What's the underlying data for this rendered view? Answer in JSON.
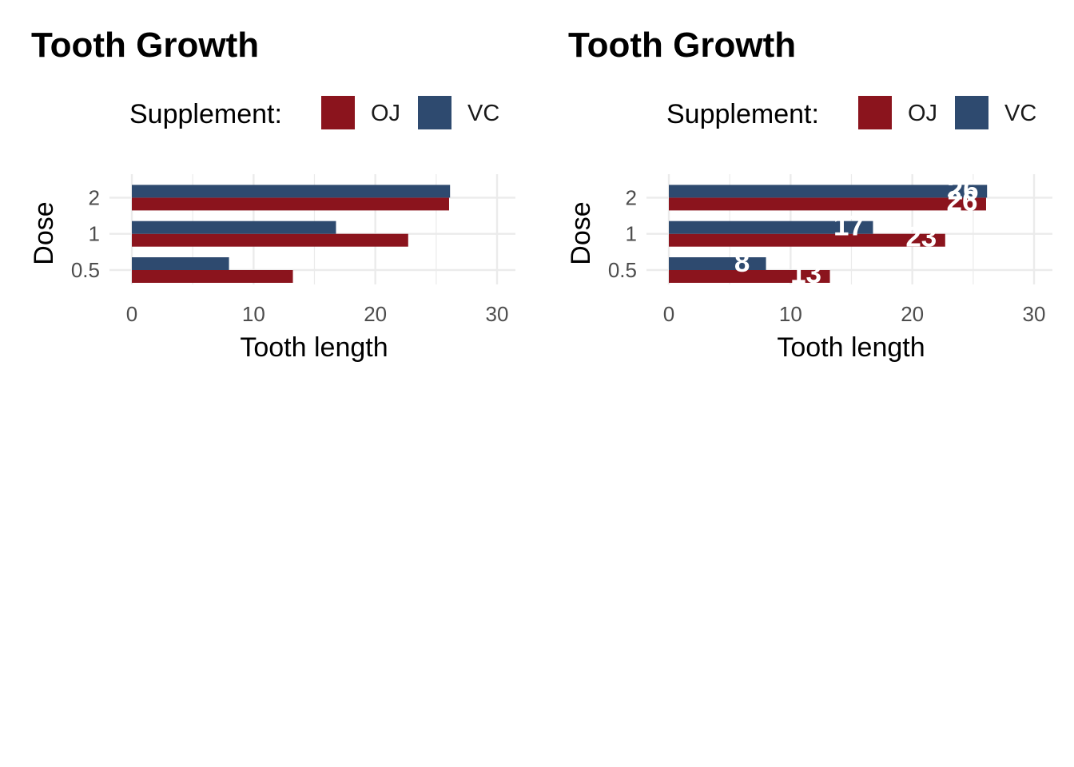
{
  "colors": {
    "OJ": "#8B141D",
    "VC": "#2E4A6F",
    "grid": "#EBEBEB"
  },
  "panels": [
    {
      "title": "Tooth Growth",
      "legend": {
        "title": "Supplement:",
        "items": [
          "OJ",
          "VC"
        ]
      },
      "show_value_labels": false
    },
    {
      "title": "Tooth Growth",
      "legend": {
        "title": "Supplement:",
        "items": [
          "OJ",
          "VC"
        ]
      },
      "show_value_labels": true
    }
  ],
  "chart_data": [
    {
      "type": "bar",
      "orientation": "horizontal",
      "title": "Tooth Growth",
      "xlabel": "Tooth length",
      "ylabel": "Dose",
      "categories": [
        "0.5",
        "1",
        "2"
      ],
      "series": [
        {
          "name": "OJ",
          "values": [
            13.23,
            22.7,
            26.06
          ]
        },
        {
          "name": "VC",
          "values": [
            7.98,
            16.77,
            26.14
          ]
        }
      ],
      "xlim": [
        0,
        30
      ],
      "xticks": [
        "0",
        "10",
        "20",
        "30"
      ],
      "grid": true,
      "legend_position": "top"
    },
    {
      "type": "bar",
      "orientation": "horizontal",
      "title": "Tooth Growth",
      "xlabel": "Tooth length",
      "ylabel": "Dose",
      "categories": [
        "0.5",
        "1",
        "2"
      ],
      "series": [
        {
          "name": "OJ",
          "values": [
            13.23,
            22.7,
            26.06
          ],
          "labels": [
            "13",
            "23",
            "26"
          ]
        },
        {
          "name": "VC",
          "values": [
            7.98,
            16.77,
            26.14
          ],
          "labels": [
            "8",
            "17",
            "26"
          ]
        }
      ],
      "xlim": [
        0,
        30
      ],
      "xticks": [
        "0",
        "10",
        "20",
        "30"
      ],
      "grid": true,
      "legend_position": "top"
    }
  ]
}
